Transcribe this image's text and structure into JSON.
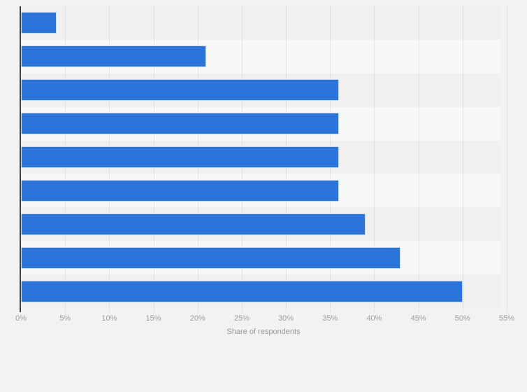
{
  "chart_data": {
    "type": "bar",
    "orientation": "horizontal",
    "title": "",
    "categories": [
      "",
      "",
      "",
      "",
      "",
      "",
      "",
      "",
      ""
    ],
    "values": [
      4,
      21,
      36,
      36,
      36,
      36,
      39,
      43,
      50
    ],
    "unit": "%",
    "xlabel": "Share of respondents",
    "ylabel": "",
    "value_axis": {
      "min": 0,
      "max": 55,
      "tick_step": 5,
      "tick_labels": [
        "0%",
        "5%",
        "10%",
        "15%",
        "20%",
        "25%",
        "30%",
        "35%",
        "40%",
        "45%",
        "50%",
        "55%"
      ]
    },
    "legend": "none",
    "grid": {
      "direction": "vertical",
      "style": "dashed"
    },
    "row_background": "alternating stripes"
  },
  "colors": {
    "page_background": "#f2f2f2",
    "stripe_dark": "#f0f0f1",
    "stripe_light": "#f7f8f8",
    "bar": "#2b74d9",
    "gridline": "#cfd0d2",
    "axis_line": "#424242",
    "tick_text": "#9e9e9e",
    "axis_title_text": "#999999"
  }
}
